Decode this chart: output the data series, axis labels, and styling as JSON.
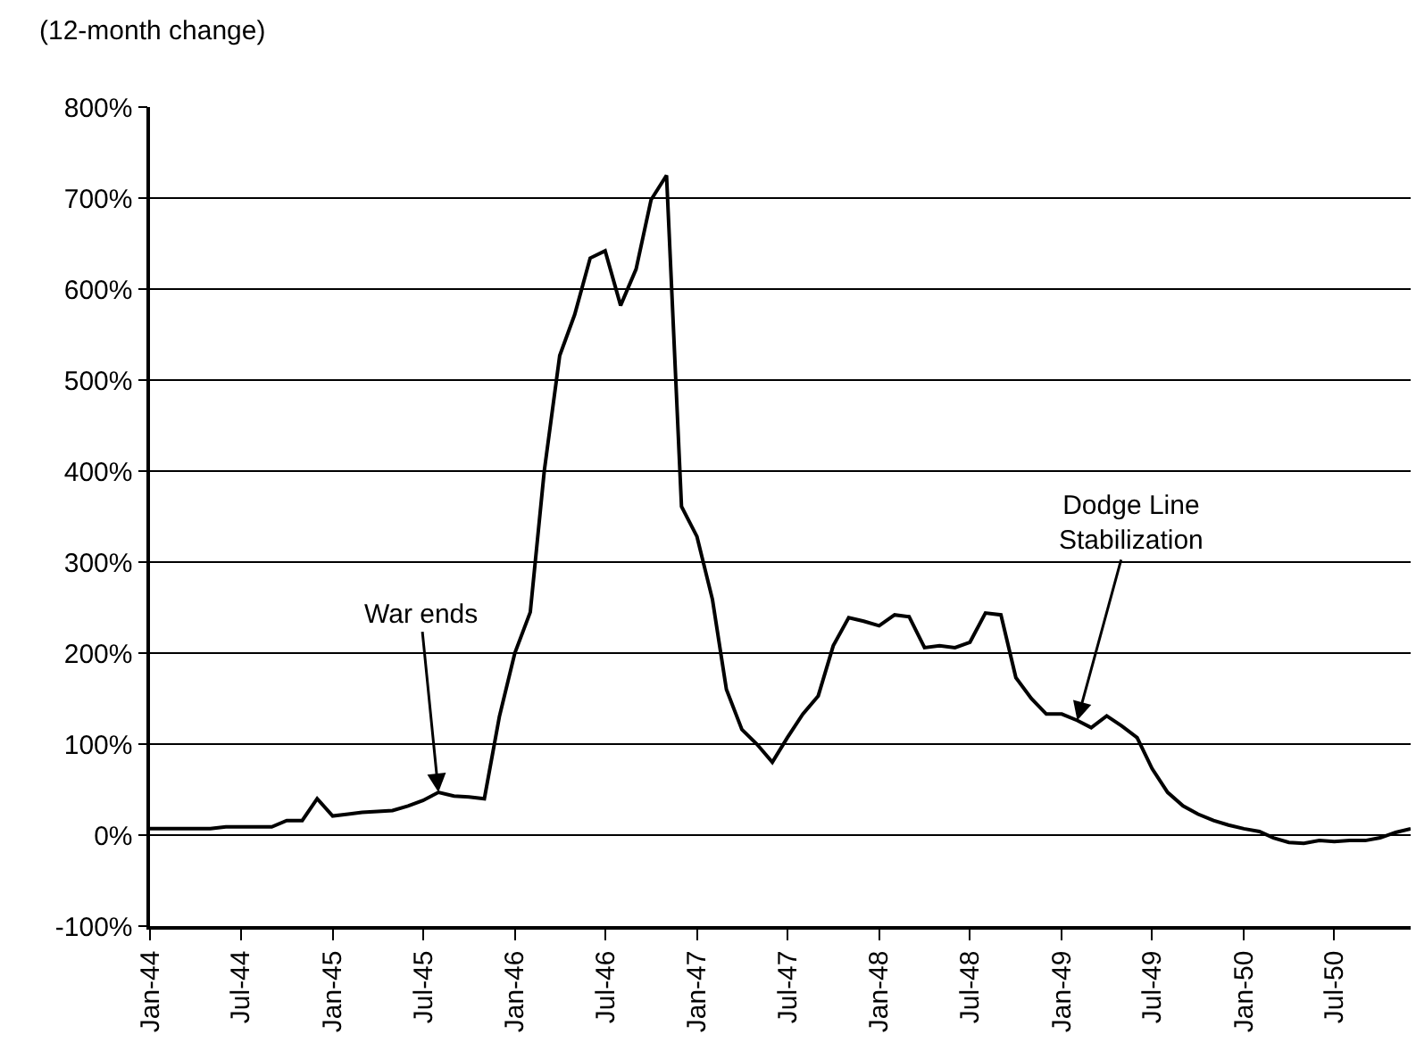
{
  "chart_data": {
    "type": "line",
    "ylabel": "(12-month change)",
    "x": [
      "1944-01",
      "1944-02",
      "1944-03",
      "1944-04",
      "1944-05",
      "1944-06",
      "1944-07",
      "1944-08",
      "1944-09",
      "1944-10",
      "1944-11",
      "1944-12",
      "1945-01",
      "1945-02",
      "1945-03",
      "1945-04",
      "1945-05",
      "1945-06",
      "1945-07",
      "1945-08",
      "1945-09",
      "1945-10",
      "1945-11",
      "1945-12",
      "1946-01",
      "1946-02",
      "1946-03",
      "1946-04",
      "1946-05",
      "1946-06",
      "1946-07",
      "1946-08",
      "1946-09",
      "1946-10",
      "1946-11",
      "1946-12",
      "1947-01",
      "1947-02",
      "1947-03",
      "1947-04",
      "1947-05",
      "1947-06",
      "1947-07",
      "1947-08",
      "1947-09",
      "1947-10",
      "1947-11",
      "1947-12",
      "1948-01",
      "1948-02",
      "1948-03",
      "1948-04",
      "1948-05",
      "1948-06",
      "1948-07",
      "1948-08",
      "1948-09",
      "1948-10",
      "1948-11",
      "1948-12",
      "1949-01",
      "1949-02",
      "1949-03",
      "1949-04",
      "1949-05",
      "1949-06",
      "1949-07",
      "1949-08",
      "1949-09",
      "1949-10",
      "1949-11",
      "1949-12",
      "1950-01",
      "1950-02",
      "1950-03",
      "1950-04",
      "1950-05",
      "1950-06",
      "1950-07",
      "1950-08",
      "1950-09",
      "1950-10",
      "1950-11",
      "1950-12"
    ],
    "series": [
      {
        "color": "#000000",
        "values": [
          7,
          7,
          7,
          7,
          7,
          9,
          9,
          9,
          9,
          16,
          16,
          40,
          21,
          23,
          25,
          26,
          27,
          32,
          38,
          47,
          43,
          42,
          40,
          130,
          200,
          245,
          400,
          527,
          572,
          634,
          642,
          582,
          622,
          698,
          725,
          361,
          328,
          259,
          160,
          116,
          100,
          80,
          107,
          133,
          153,
          208,
          239,
          235,
          230,
          242,
          240,
          206,
          208,
          206,
          212,
          244,
          242,
          173,
          150,
          133,
          133,
          126,
          118,
          131,
          120,
          107,
          73,
          47,
          32,
          23,
          16,
          11,
          7,
          4,
          -3,
          -8,
          -9,
          -6,
          -7,
          -6,
          -6,
          -3,
          3,
          7
        ]
      }
    ],
    "xlim": [
      "1944-01",
      "1950-12"
    ],
    "xticks": [
      {
        "value": "1944-01",
        "label": "Jan-44"
      },
      {
        "value": "1944-07",
        "label": "Jul-44"
      },
      {
        "value": "1945-01",
        "label": "Jan-45"
      },
      {
        "value": "1945-07",
        "label": "Jul-45"
      },
      {
        "value": "1946-01",
        "label": "Jan-46"
      },
      {
        "value": "1946-07",
        "label": "Jul-46"
      },
      {
        "value": "1947-01",
        "label": "Jan-47"
      },
      {
        "value": "1947-07",
        "label": "Jul-47"
      },
      {
        "value": "1948-01",
        "label": "Jan-48"
      },
      {
        "value": "1948-07",
        "label": "Jul-48"
      },
      {
        "value": "1949-01",
        "label": "Jan-49"
      },
      {
        "value": "1949-07",
        "label": "Jul-49"
      },
      {
        "value": "1950-01",
        "label": "Jan-50"
      },
      {
        "value": "1950-07",
        "label": "Jul-50"
      }
    ],
    "ylim": [
      -100,
      800
    ],
    "yticks": [
      {
        "value": -100,
        "label": "-100%"
      },
      {
        "value": 0,
        "label": "0%"
      },
      {
        "value": 100,
        "label": "100%"
      },
      {
        "value": 200,
        "label": "200%"
      },
      {
        "value": 300,
        "label": "300%"
      },
      {
        "value": 400,
        "label": "400%"
      },
      {
        "value": 500,
        "label": "500%"
      },
      {
        "value": 600,
        "label": "600%"
      },
      {
        "value": 700,
        "label": "700%"
      },
      {
        "value": 800,
        "label": "800%"
      }
    ],
    "grid": "y",
    "marker": "none",
    "line_style": "solid",
    "annotations": [
      {
        "text": "War ends",
        "x": "1945-08",
        "y": 47
      },
      {
        "text": "Dodge Line\nStabilization",
        "x": "1949-02",
        "y": 126
      }
    ]
  }
}
